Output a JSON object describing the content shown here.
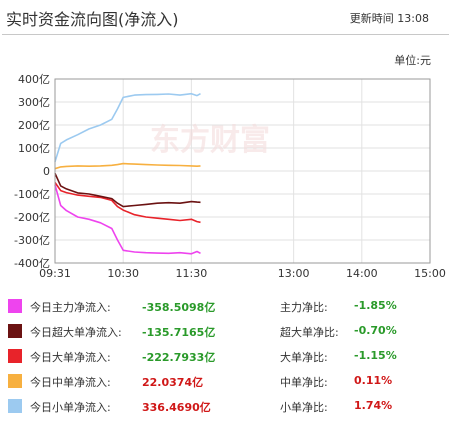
{
  "header": {
    "title": "实时资金流向图(净流入)",
    "update_label": "更新時间",
    "update_time": "13:08"
  },
  "unit_label": "单位:元",
  "watermark": "东方财富",
  "colors": {
    "main": "#ee44ee",
    "super": "#6b1212",
    "large": "#e8232a",
    "medium": "#f7b040",
    "small": "#9ccaf0",
    "negative": "#2a9a2a",
    "positive": "#d01818"
  },
  "legend": [
    {
      "label": "今日主力净流入:",
      "value": "-358.5098亿",
      "ratio_label": "主力净比:",
      "ratio": "-1.85%",
      "color": "#ee44ee",
      "sign": "neg"
    },
    {
      "label": "今日超大单净流入:",
      "value": "-135.7165亿",
      "ratio_label": "超大单净比:",
      "ratio": "-0.70%",
      "color": "#6b1212",
      "sign": "neg"
    },
    {
      "label": "今日大单净流入:",
      "value": "-222.7933亿",
      "ratio_label": "大单净比:",
      "ratio": "-1.15%",
      "color": "#e8232a",
      "sign": "neg"
    },
    {
      "label": "今日中单净流入:",
      "value": "22.0374亿",
      "ratio_label": "中单净比:",
      "ratio": "0.11%",
      "color": "#f7b040",
      "sign": "pos"
    },
    {
      "label": "今日小单净流入:",
      "value": "336.4690亿",
      "ratio_label": "小单净比:",
      "ratio": "1.74%",
      "color": "#9ccaf0",
      "sign": "pos"
    }
  ],
  "chart_data": {
    "type": "line",
    "title": "实时资金流向图(净流入)",
    "ylabel": "",
    "xlabel": "",
    "y_unit": "亿",
    "ylim": [
      -400,
      400
    ],
    "y_ticks": [
      400,
      300,
      200,
      100,
      0,
      -100,
      -200,
      -300,
      -400
    ],
    "y_tick_labels": [
      "400亿",
      "300亿",
      "200亿",
      "100亿",
      "0",
      "-100亿",
      "-200亿",
      "-300亿",
      "-400亿"
    ],
    "x_range_minutes": [
      0,
      330
    ],
    "x_ticks_minutes": [
      0,
      60,
      120,
      210,
      270,
      330
    ],
    "x_tick_labels": [
      "09:31",
      "10:30",
      "11:30",
      "13:00",
      "14:00",
      "15:00"
    ],
    "grid": true,
    "x": [
      0,
      5,
      10,
      20,
      30,
      40,
      50,
      55,
      60,
      70,
      80,
      90,
      100,
      110,
      120,
      125,
      128
    ],
    "series": [
      {
        "name": "主力净流入",
        "color": "#ee44ee",
        "values": [
          -60,
          -150,
          -172,
          -200,
          -210,
          -225,
          -250,
          -300,
          -345,
          -352,
          -355,
          -357,
          -358,
          -355,
          -360,
          -350,
          -358
        ]
      },
      {
        "name": "超大单净流入",
        "color": "#6b1212",
        "values": [
          -10,
          -65,
          -78,
          -95,
          -100,
          -110,
          -120,
          -140,
          -155,
          -150,
          -145,
          -140,
          -138,
          -140,
          -133,
          -135,
          -136
        ]
      },
      {
        "name": "大单净流入",
        "color": "#e8232a",
        "values": [
          -50,
          -85,
          -94,
          -105,
          -110,
          -115,
          -128,
          -155,
          -170,
          -190,
          -200,
          -205,
          -210,
          -215,
          -210,
          -220,
          -223
        ]
      },
      {
        "name": "中单净流入",
        "color": "#f7b040",
        "values": [
          10,
          18,
          20,
          22,
          21,
          22,
          25,
          28,
          32,
          30,
          28,
          26,
          25,
          24,
          22,
          21,
          22
        ]
      },
      {
        "name": "小单净流入",
        "color": "#9ccaf0",
        "values": [
          40,
          120,
          135,
          158,
          183,
          200,
          225,
          270,
          320,
          330,
          332,
          333,
          335,
          330,
          336,
          328,
          336
        ]
      }
    ]
  }
}
